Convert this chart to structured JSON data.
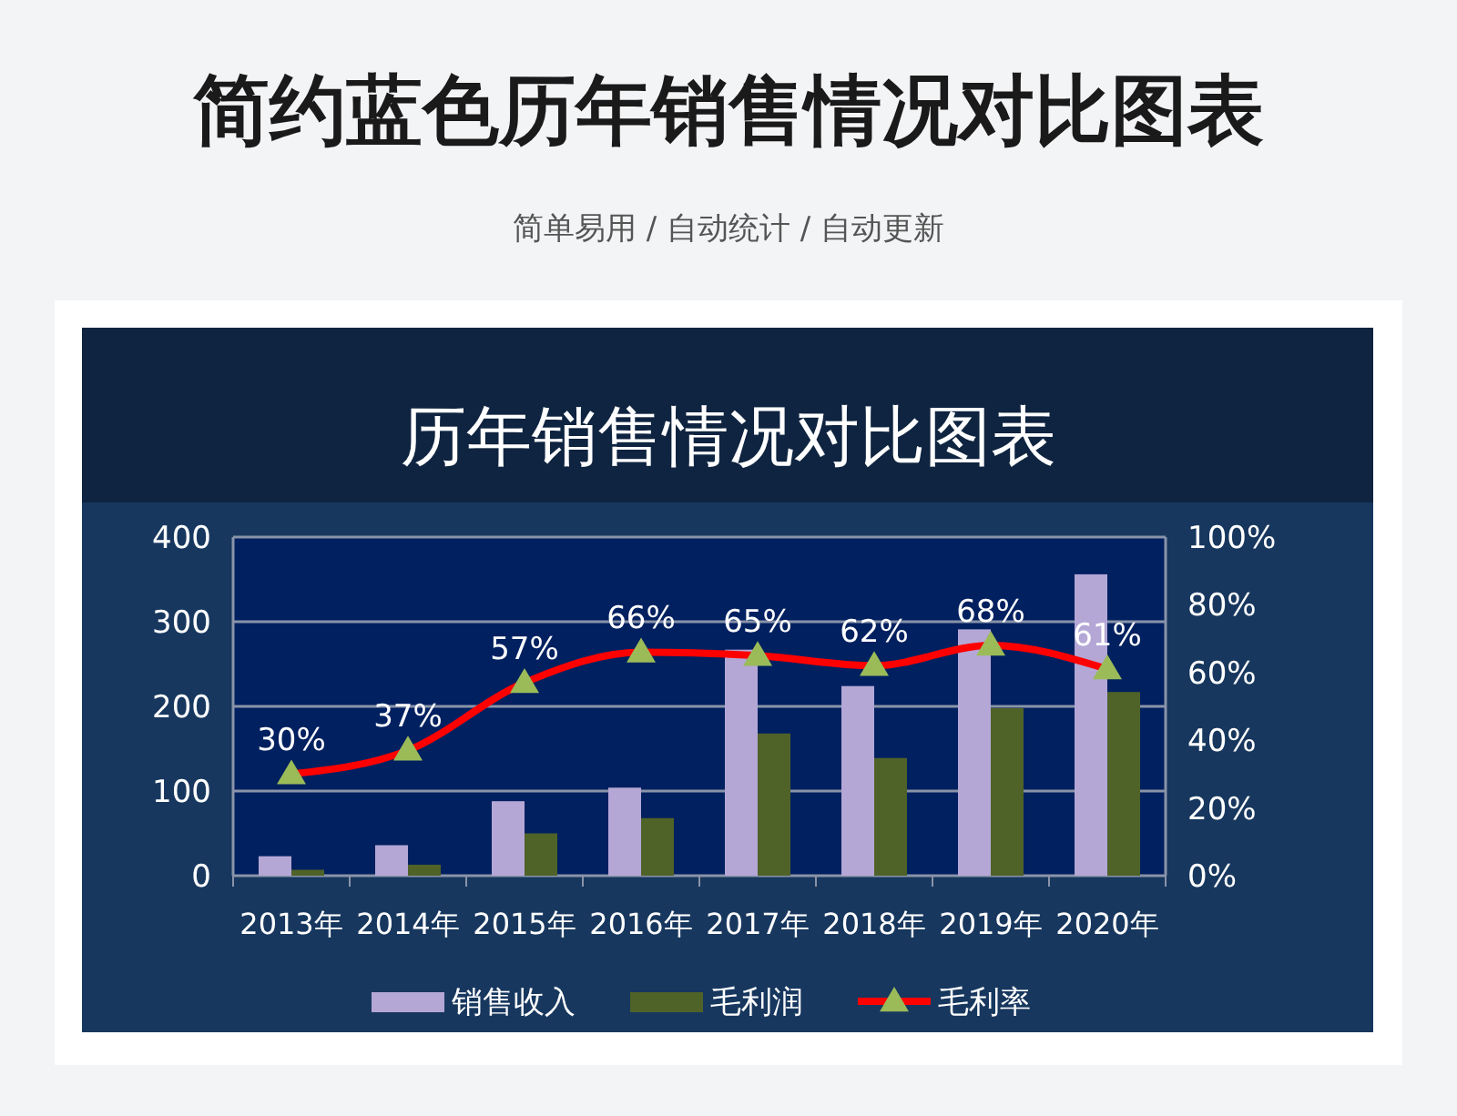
{
  "chart_data": {
    "type": "bar",
    "title": "简约蓝色历年销售情况对比图表",
    "subtitle": "简单易用 / 自动统计 / 自动更新",
    "annotations": [
      "历年销售情况对比图表"
    ],
    "categories": [
      "2013年",
      "2014年",
      "2015年",
      "2016年",
      "2017年",
      "2018年",
      "2019年",
      "2020年"
    ],
    "series": [
      {
        "name": "销售收入",
        "color": "#b4a7d6",
        "values": [
          23,
          36,
          88,
          104,
          267,
          224,
          291,
          356
        ]
      },
      {
        "name": "毛利润",
        "color": "#4f6228",
        "values": [
          7,
          13,
          50,
          68,
          168,
          139,
          198,
          217
        ]
      },
      {
        "name": "毛利率",
        "type": "line",
        "axis": "y2",
        "color": "#ff0000",
        "values": [
          30,
          37,
          57,
          66,
          65,
          62,
          68,
          61
        ],
        "value_labels": [
          "30%",
          "37%",
          "57%",
          "66%",
          "65%",
          "62%",
          "68%",
          "61%"
        ]
      }
    ],
    "ylim": [
      0,
      400
    ],
    "yticks": [
      0,
      100,
      200,
      300,
      400
    ],
    "y2lim": [
      0,
      100
    ],
    "y2ticks": [
      {
        "value": 0,
        "label": "0%"
      },
      {
        "value": 20,
        "label": "20%"
      },
      {
        "value": 40,
        "label": "40%"
      },
      {
        "value": 60,
        "label": "60%"
      },
      {
        "value": 80,
        "label": "80%"
      },
      {
        "value": 100,
        "label": "100%"
      }
    ],
    "grid": "y",
    "legend": "bottom",
    "marker": "triangle",
    "line_style": "solid"
  }
}
